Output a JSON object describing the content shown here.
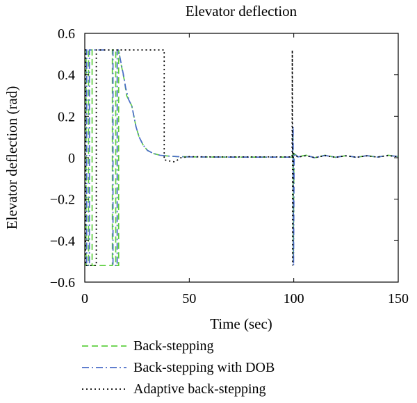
{
  "chart_data": {
    "type": "line",
    "title": "Elevator deflection",
    "xlabel": "Time (sec)",
    "ylabel": "Elevator deflection (rad)",
    "xlim": [
      0,
      150
    ],
    "ylim": [
      -0.6,
      0.6
    ],
    "xticks": [
      0,
      50,
      100,
      150
    ],
    "xtick_labels": [
      "0",
      "50",
      "100",
      "150"
    ],
    "yticks": [
      0.6,
      0.4,
      0.2,
      0,
      -0.2,
      -0.4,
      -0.6
    ],
    "ytick_labels": [
      "0.6",
      "0.4",
      "0.2",
      "0",
      "−0.2",
      "−0.4",
      "−0.6"
    ],
    "grid": false,
    "legend_position": "below",
    "series": [
      {
        "name": "Back-stepping",
        "color": "#5fcf40",
        "dash": "long-dash",
        "points": [
          [
            0,
            0.52
          ],
          [
            0.6,
            0.52
          ],
          [
            0.6,
            -0.52
          ],
          [
            1.8,
            -0.52
          ],
          [
            1.8,
            0.52
          ],
          [
            3.5,
            0.52
          ],
          [
            3.5,
            -0.52
          ],
          [
            13.2,
            -0.52
          ],
          [
            13.2,
            0.52
          ],
          [
            14.8,
            0.52
          ],
          [
            14.8,
            -0.52
          ],
          [
            16.2,
            -0.52
          ],
          [
            16.2,
            0.52
          ],
          [
            17.2,
            0.46
          ],
          [
            18,
            0.42
          ],
          [
            19,
            0.37
          ],
          [
            20,
            0.3
          ],
          [
            21.5,
            0.27
          ],
          [
            22.5,
            0.25
          ],
          [
            23.5,
            0.2
          ],
          [
            24.5,
            0.15
          ],
          [
            26,
            0.1
          ],
          [
            28,
            0.06
          ],
          [
            30,
            0.035
          ],
          [
            33,
            0.02
          ],
          [
            36,
            0.012
          ],
          [
            40,
            0.008
          ],
          [
            45,
            0.005
          ],
          [
            50,
            0.004
          ],
          [
            70,
            0.003
          ],
          [
            90,
            0.003
          ],
          [
            99.4,
            0.003
          ],
          [
            99.6,
            0.12
          ],
          [
            99.8,
            -0.5
          ],
          [
            100.1,
            0.02
          ],
          [
            102,
            0.005
          ],
          [
            106,
            0.012
          ],
          [
            110,
            0.0
          ],
          [
            115,
            0.012
          ],
          [
            120,
            0.002
          ],
          [
            125,
            0.01
          ],
          [
            130,
            0.002
          ],
          [
            135,
            0.01
          ],
          [
            140,
            0.003
          ],
          [
            145,
            0.012
          ],
          [
            150,
            0.006
          ]
        ]
      },
      {
        "name": "Back-stepping with DOB",
        "color": "#4a6cc8",
        "dash": "dash-dot",
        "points": [
          [
            0,
            0.52
          ],
          [
            0.9,
            0.52
          ],
          [
            0.9,
            -0.52
          ],
          [
            2.2,
            -0.52
          ],
          [
            2.2,
            0.52
          ],
          [
            13.5,
            0.52
          ],
          [
            13.5,
            -0.52
          ],
          [
            15.5,
            -0.52
          ],
          [
            15.5,
            0.52
          ],
          [
            16.5,
            0.52
          ],
          [
            16.5,
            0.5
          ],
          [
            17.5,
            0.45
          ],
          [
            18.5,
            0.4
          ],
          [
            19.5,
            0.34
          ],
          [
            21,
            0.28
          ],
          [
            22.5,
            0.25
          ],
          [
            23.5,
            0.2
          ],
          [
            24.5,
            0.15
          ],
          [
            26,
            0.1
          ],
          [
            28,
            0.06
          ],
          [
            30,
            0.035
          ],
          [
            33,
            0.02
          ],
          [
            36,
            0.012
          ],
          [
            40,
            0.008
          ],
          [
            45,
            0.005
          ],
          [
            50,
            0.004
          ],
          [
            70,
            0.003
          ],
          [
            90,
            0.003
          ],
          [
            99.4,
            0.003
          ],
          [
            99.7,
            0.15
          ],
          [
            99.9,
            -0.52
          ],
          [
            100.2,
            0.02
          ],
          [
            102,
            0.004
          ],
          [
            106,
            0.011
          ],
          [
            110,
            0.0
          ],
          [
            115,
            0.011
          ],
          [
            120,
            0.002
          ],
          [
            125,
            0.01
          ],
          [
            130,
            0.002
          ],
          [
            135,
            0.01
          ],
          [
            140,
            0.003
          ],
          [
            145,
            0.011
          ],
          [
            150,
            0.006
          ]
        ]
      },
      {
        "name": "Adaptive back-stepping",
        "color": "#000000",
        "dash": "dotted",
        "points": [
          [
            0,
            0.52
          ],
          [
            0.4,
            0.52
          ],
          [
            0.4,
            -0.52
          ],
          [
            5.5,
            -0.52
          ],
          [
            5.5,
            0.52
          ],
          [
            38,
            0.52
          ],
          [
            38,
            -0.01
          ],
          [
            40,
            -0.015
          ],
          [
            43,
            -0.02
          ],
          [
            46,
            0.0
          ],
          [
            50,
            0.005
          ],
          [
            60,
            0.004
          ],
          [
            80,
            0.004
          ],
          [
            99.2,
            0.004
          ],
          [
            99.3,
            0.52
          ],
          [
            99.5,
            -0.52
          ],
          [
            99.8,
            0.02
          ],
          [
            102,
            0.003
          ],
          [
            106,
            0.01
          ],
          [
            110,
            0.0
          ],
          [
            115,
            0.01
          ],
          [
            120,
            0.002
          ],
          [
            125,
            0.009
          ],
          [
            130,
            0.002
          ],
          [
            135,
            0.009
          ],
          [
            140,
            0.003
          ],
          [
            145,
            0.01
          ],
          [
            150,
            0.005
          ]
        ]
      }
    ]
  }
}
